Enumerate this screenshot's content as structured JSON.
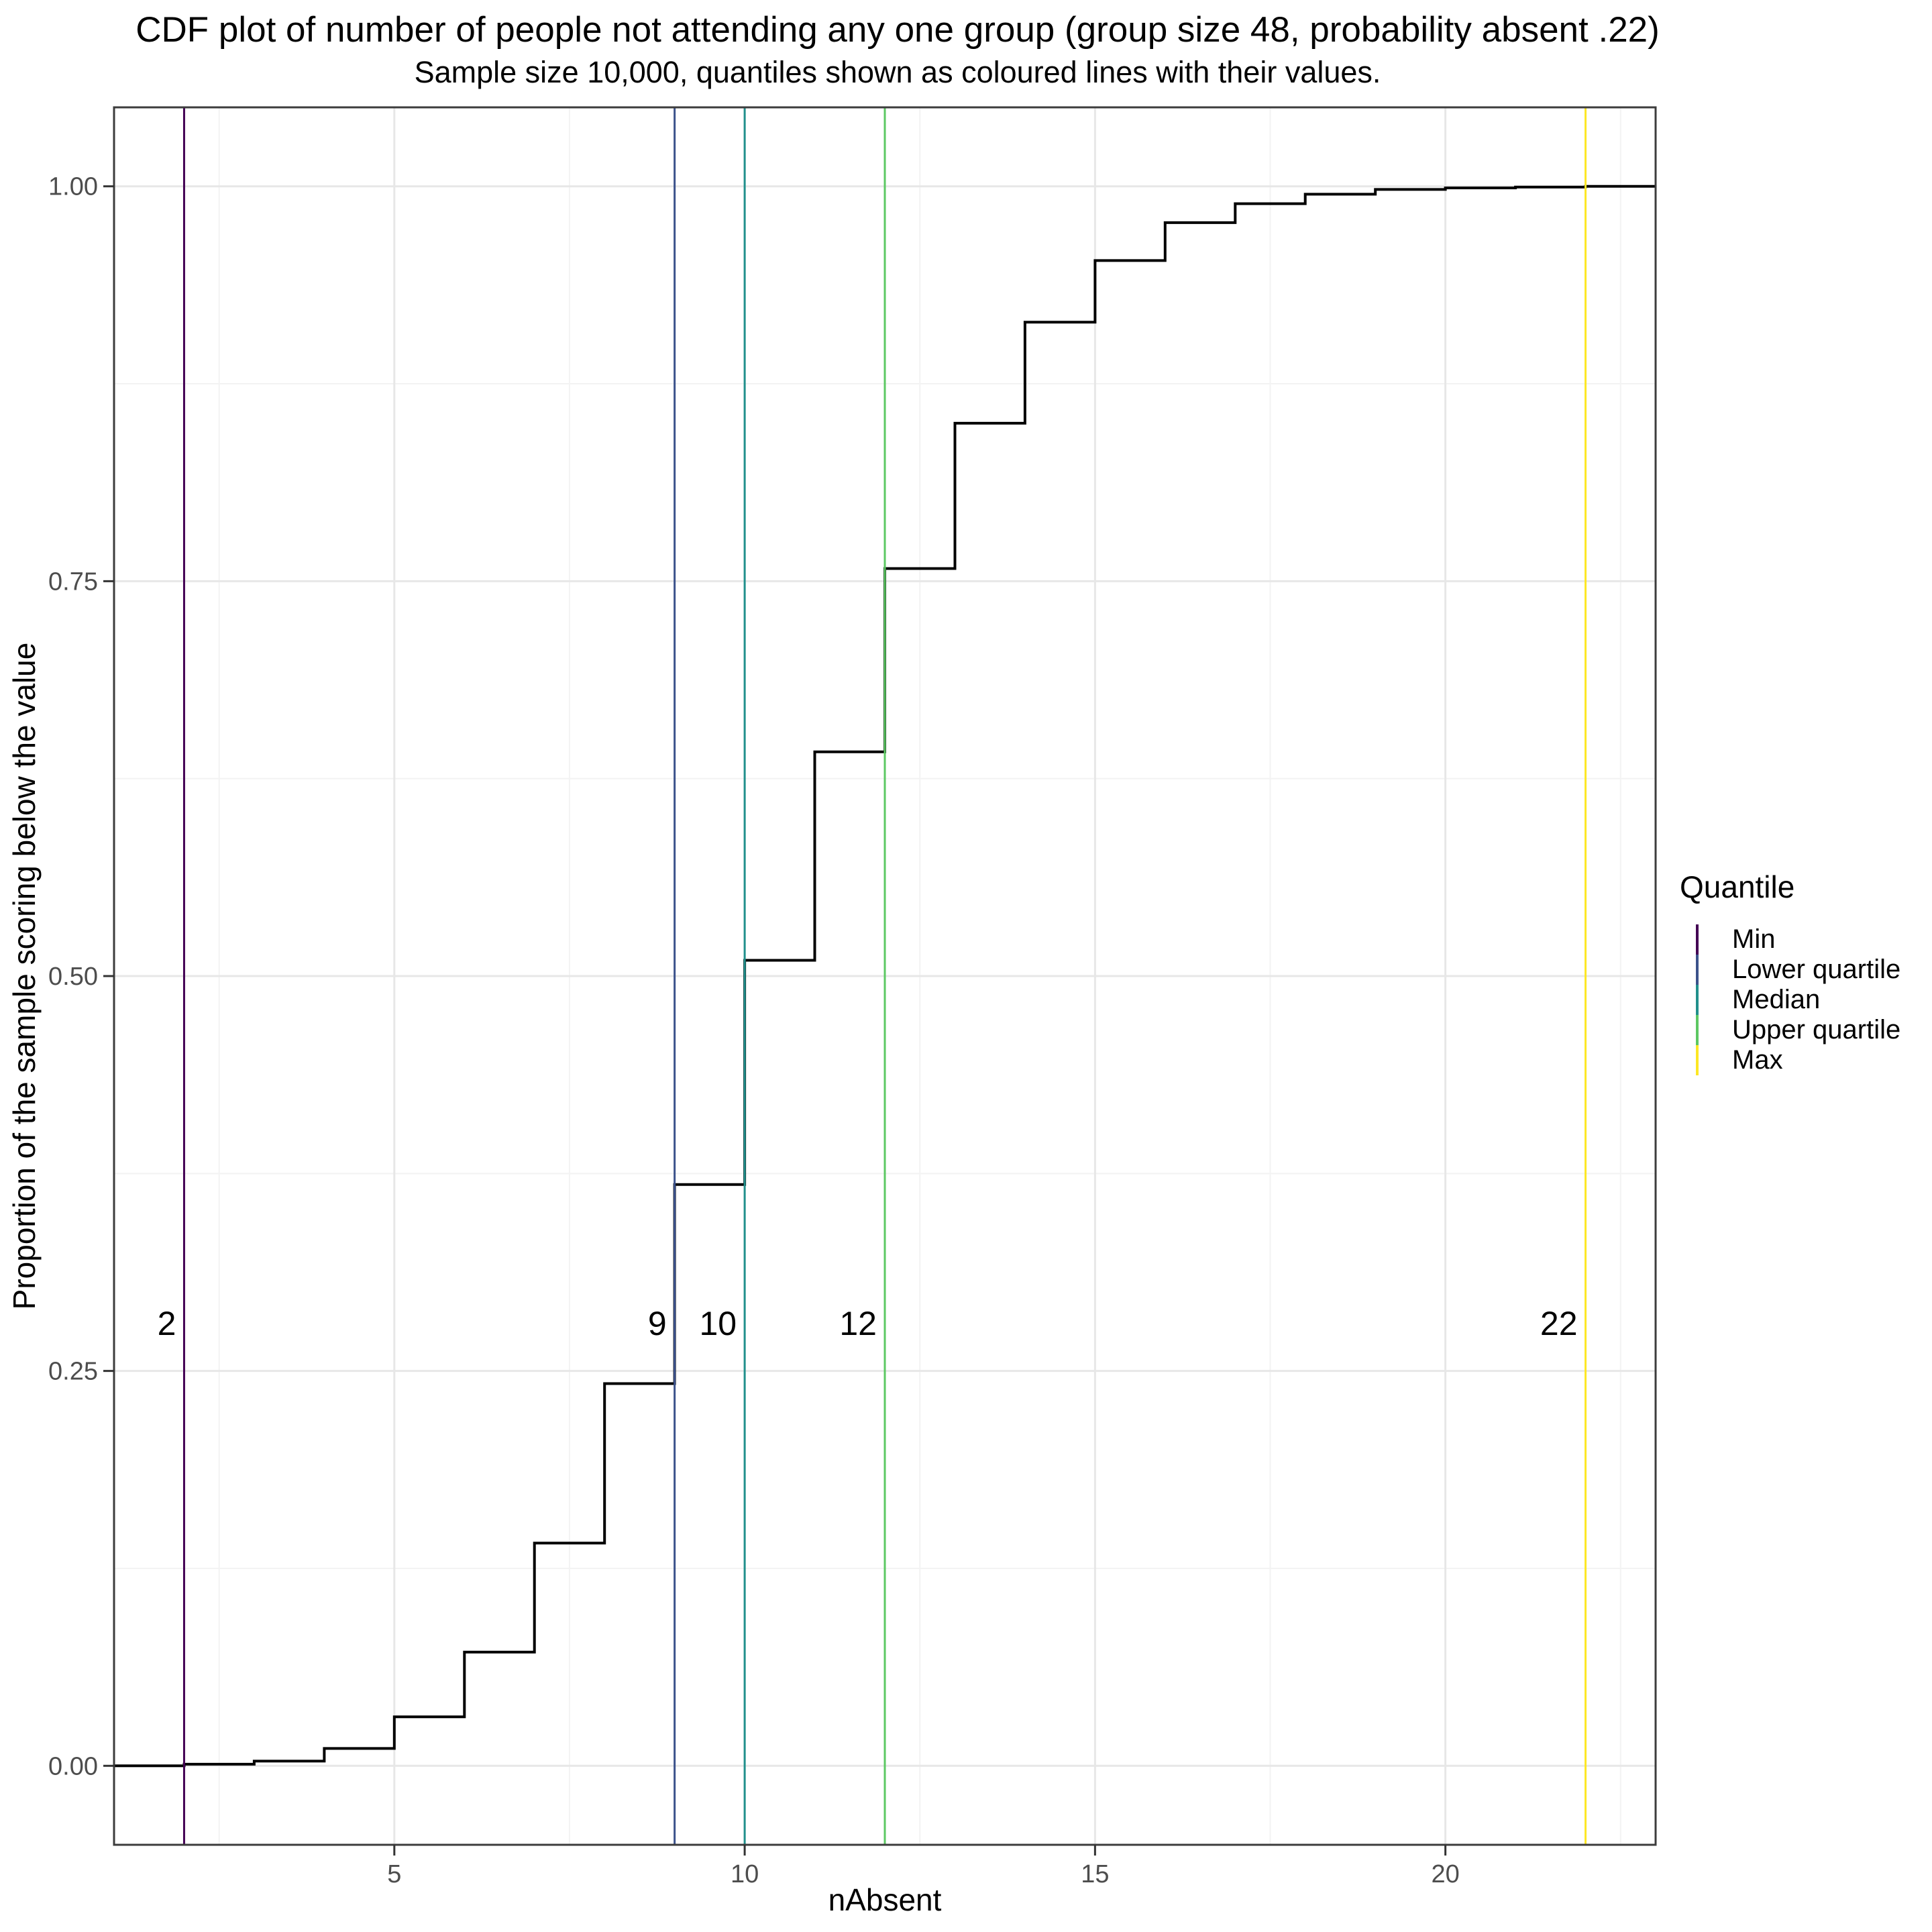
{
  "figure": {
    "title": "CDF plot of number of people not attending any one group (group size 48, probability absent .22)",
    "subtitle": "Sample size 10,000, quantiles shown as coloured lines with their values."
  },
  "axes": {
    "x": {
      "title": "nAbsent",
      "ticks": [
        5,
        10,
        15,
        20
      ],
      "minor_ticks": [
        2.5,
        7.5,
        12.5,
        17.5,
        22.5
      ],
      "range": [
        1,
        23
      ]
    },
    "y": {
      "title": "Proportion of the sample scoring below the value",
      "tick_labels": [
        "0.00",
        "0.25",
        "0.50",
        "0.75",
        "1.00"
      ],
      "tick_values": [
        0,
        0.25,
        0.5,
        0.75,
        1
      ],
      "minor_tick_values": [
        0.125,
        0.375,
        0.625,
        0.875
      ],
      "range": [
        -0.05,
        1.05
      ]
    }
  },
  "legend": {
    "title": "Quantile",
    "items": [
      {
        "label": "Min",
        "color": "#440154"
      },
      {
        "label": "Lower quartile",
        "color": "#3B528B"
      },
      {
        "label": "Median",
        "color": "#21908C"
      },
      {
        "label": "Upper quartile",
        "color": "#5DC863"
      },
      {
        "label": "Max",
        "color": "#FDE725"
      }
    ]
  },
  "chart_data": {
    "type": "line",
    "subtype": "ecdf-step",
    "title": "CDF plot of number of people not attending any one group (group size 48, probability absent .22)",
    "subtitle": "Sample size 10,000, quantiles shown as coloured lines with their values.",
    "xlabel": "nAbsent",
    "ylabel": "Proportion of the sample scoring below the value",
    "xlim": [
      1,
      23
    ],
    "ylim": [
      -0.05,
      1.05
    ],
    "grid": true,
    "legend_position": "right",
    "sample_size": 10000,
    "group_size": 48,
    "probability_absent": 0.22,
    "x": [
      2,
      3,
      4,
      5,
      6,
      7,
      8,
      9,
      10,
      11,
      12,
      13,
      14,
      15,
      16,
      17,
      18,
      19,
      20,
      21,
      22
    ],
    "y": [
      0.001,
      0.003,
      0.011,
      0.031,
      0.072,
      0.141,
      0.242,
      0.368,
      0.51,
      0.642,
      0.758,
      0.85,
      0.914,
      0.953,
      0.977,
      0.989,
      0.995,
      0.998,
      0.999,
      0.9995,
      1.0
    ],
    "quantile_lines": [
      {
        "name": "Min",
        "x": 2,
        "label": "2",
        "color": "#440154"
      },
      {
        "name": "Lower quartile",
        "x": 9,
        "label": "9",
        "color": "#3B528B"
      },
      {
        "name": "Median",
        "x": 10,
        "label": "10",
        "color": "#21908C"
      },
      {
        "name": "Upper quartile",
        "x": 12,
        "label": "12",
        "color": "#5DC863"
      },
      {
        "name": "Max",
        "x": 22,
        "label": "22",
        "color": "#FDE725"
      }
    ],
    "annotation_y": 0.28
  }
}
